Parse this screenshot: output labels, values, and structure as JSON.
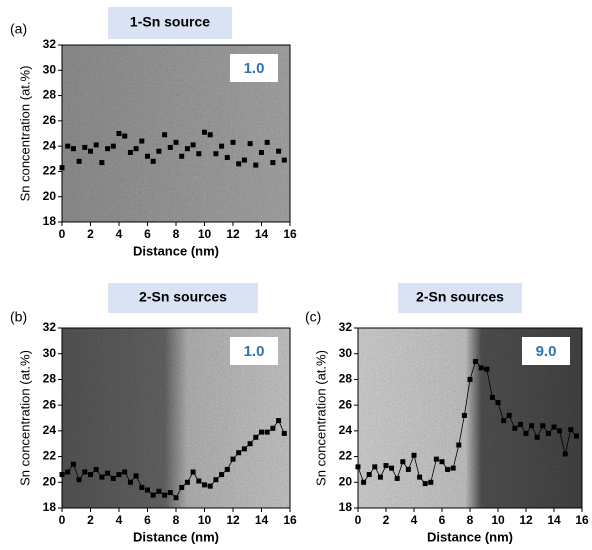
{
  "chart_data": [
    {
      "type": "scatter",
      "panel": "(a)",
      "title": "1-Sn source",
      "annotation": "1.0",
      "xlabel": "Distance (nm)",
      "ylabel": "Sn concentration (at.%)",
      "color": "#000000",
      "x": [
        0,
        0.4,
        0.8,
        1.2,
        1.6,
        2,
        2.4,
        2.8,
        3.2,
        3.6,
        4,
        4.4,
        4.8,
        5.2,
        5.6,
        6,
        6.4,
        6.8,
        7.2,
        7.6,
        8,
        8.4,
        8.8,
        9.2,
        9.6,
        10,
        10.4,
        10.8,
        11.2,
        11.6,
        12,
        12.4,
        12.8,
        13.2,
        13.6,
        14,
        14.4,
        14.8,
        15.2,
        15.6
      ],
      "values": [
        22.3,
        24,
        23.8,
        22.8,
        23.9,
        23.6,
        24.1,
        22.7,
        23.8,
        24,
        25,
        24.8,
        23.5,
        23.8,
        24.4,
        23.2,
        22.8,
        23.6,
        24.9,
        23.9,
        24.3,
        23.2,
        23.8,
        24.1,
        23.4,
        25.1,
        24.9,
        23.4,
        24,
        23.1,
        24.3,
        22.6,
        22.9,
        24.2,
        22.5,
        23.5,
        24.3,
        22.7,
        23.6,
        22.9
      ],
      "xlim": [
        0,
        16
      ],
      "ylim": [
        18,
        32
      ],
      "xticks": [
        0,
        2,
        4,
        6,
        8,
        10,
        12,
        14,
        16
      ],
      "yticks": [
        18,
        20,
        22,
        24,
        26,
        28,
        30,
        32
      ]
    },
    {
      "type": "line",
      "panel": "(b)",
      "title": "2-Sn sources",
      "annotation": "1.0",
      "xlabel": "Distance (nm)",
      "ylabel": "Sn concentration (at.%)",
      "color": "#000000",
      "x": [
        0,
        0.4,
        0.8,
        1.2,
        1.6,
        2,
        2.4,
        2.8,
        3.2,
        3.6,
        4,
        4.4,
        4.8,
        5.2,
        5.6,
        6,
        6.4,
        6.8,
        7.2,
        7.6,
        8,
        8.4,
        8.8,
        9.2,
        9.6,
        10,
        10.4,
        10.8,
        11.2,
        11.6,
        12,
        12.4,
        12.8,
        13.2,
        13.6,
        14,
        14.4,
        14.8,
        15.2,
        15.6
      ],
      "values": [
        20.6,
        20.8,
        21.4,
        20.2,
        20.8,
        20.6,
        21,
        20.4,
        20.7,
        20.3,
        20.6,
        20.8,
        20,
        20.5,
        19.6,
        19.4,
        19,
        19.3,
        19,
        19.2,
        18.8,
        19.6,
        20,
        20.8,
        20.1,
        19.8,
        19.7,
        20.2,
        20.6,
        21,
        21.8,
        22.3,
        22.6,
        23,
        23.5,
        23.9,
        23.9,
        24.2,
        24.8,
        23.8
      ],
      "xlim": [
        0,
        16
      ],
      "ylim": [
        18,
        32
      ],
      "xticks": [
        0,
        2,
        4,
        6,
        8,
        10,
        12,
        14,
        16
      ],
      "yticks": [
        18,
        20,
        22,
        24,
        26,
        28,
        30,
        32
      ]
    },
    {
      "type": "line",
      "panel": "(c)",
      "title": "2-Sn sources",
      "annotation": "9.0",
      "xlabel": "Distance (nm)",
      "ylabel": "Sn concentration (at.%)",
      "color": "#000000",
      "x": [
        0,
        0.4,
        0.8,
        1.2,
        1.6,
        2,
        2.4,
        2.8,
        3.2,
        3.6,
        4,
        4.4,
        4.8,
        5.2,
        5.6,
        6,
        6.4,
        6.8,
        7.2,
        7.6,
        8,
        8.4,
        8.8,
        9.2,
        9.6,
        10,
        10.4,
        10.8,
        11.2,
        11.6,
        12,
        12.4,
        12.8,
        13.2,
        13.6,
        14,
        14.4,
        14.8,
        15.2,
        15.6
      ],
      "values": [
        21.2,
        20,
        20.6,
        21.2,
        20.4,
        21.3,
        21.1,
        20.3,
        21.6,
        21,
        22.1,
        20.4,
        19.9,
        20,
        21.8,
        21.6,
        21,
        21.1,
        22.9,
        25.2,
        28,
        29.4,
        28.9,
        28.8,
        26.6,
        26.2,
        24.8,
        25.2,
        24.2,
        24.5,
        23.8,
        24.4,
        23.5,
        24.4,
        23.8,
        24.3,
        24,
        22.2,
        24.1,
        23.6
      ],
      "xlim": [
        0,
        16
      ],
      "ylim": [
        18,
        32
      ],
      "xticks": [
        0,
        2,
        4,
        6,
        8,
        10,
        12,
        14,
        16
      ],
      "yticks": [
        18,
        20,
        22,
        24,
        26,
        28,
        30,
        32
      ]
    }
  ]
}
